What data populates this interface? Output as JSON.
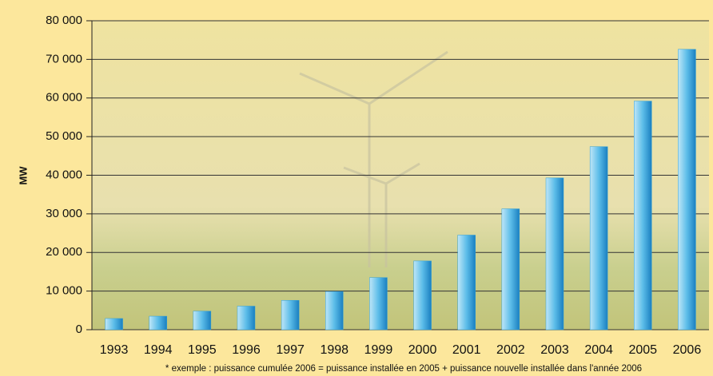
{
  "chart_data": {
    "type": "bar",
    "y_axis_label": "MW",
    "categories": [
      "1993",
      "1994",
      "1995",
      "1996",
      "1997",
      "1998",
      "1999",
      "2000",
      "2001",
      "2002",
      "2003",
      "2004",
      "2005",
      "2006"
    ],
    "values": [
      2900,
      3500,
      4800,
      6100,
      7600,
      9900,
      13500,
      17800,
      24500,
      31300,
      39300,
      47400,
      59200,
      72600
    ],
    "color": "#2f9fd8",
    "ylim": [
      0,
      80000
    ],
    "yticks": [
      0,
      {
        "value": 10000,
        "label": "10 000"
      },
      {
        "value": 20000,
        "label": "20 000"
      },
      {
        "value": 30000,
        "label": "30 000"
      },
      {
        "value": 40000,
        "label": "40 000"
      },
      {
        "value": 50000,
        "label": "50 000"
      },
      {
        "value": 60000,
        "label": "60 000"
      },
      {
        "value": 70000,
        "label": "70 000"
      },
      {
        "value": 80000,
        "label": "80 000"
      }
    ],
    "grid": true,
    "footnote": "* exemple : puissance cumulée 2006 = puissance installée en 2005 + puissance nouvelle installée dans l'année 2006"
  }
}
